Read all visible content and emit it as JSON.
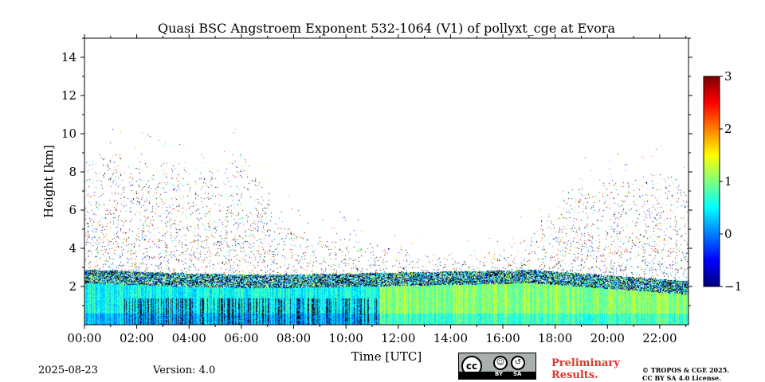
{
  "chart_data": {
    "type": "heatmap",
    "title": "Quasi BSC Angstroem Exponent 532-1064 (V1) of pollyxt_cge at Evora",
    "xlabel": "Time [UTC]",
    "ylabel": "Height [km]",
    "xlim_hours": [
      0,
      23.1
    ],
    "ylim_km": [
      0,
      15
    ],
    "x_ticks": [
      "00:00",
      "02:00",
      "04:00",
      "06:00",
      "08:00",
      "10:00",
      "12:00",
      "14:00",
      "16:00",
      "18:00",
      "20:00",
      "22:00"
    ],
    "x_tick_hours": [
      0,
      2,
      4,
      6,
      8,
      10,
      12,
      14,
      16,
      18,
      20,
      22
    ],
    "y_ticks": [
      2,
      4,
      6,
      8,
      10,
      12,
      14
    ],
    "colorbar": {
      "range": [
        -1,
        3
      ],
      "ticks": [
        "−1",
        "0",
        "1",
        "2",
        "3"
      ],
      "tick_values": [
        -1,
        0,
        1,
        2,
        3
      ],
      "colormap": "jet"
    },
    "features": {
      "boundary_layer_top_km": {
        "hours": [
          0,
          2,
          4,
          6,
          8,
          10,
          12,
          14,
          16,
          17,
          18,
          20,
          22,
          23.1
        ],
        "height": [
          2.7,
          2.6,
          2.5,
          2.45,
          2.45,
          2.5,
          2.55,
          2.6,
          2.65,
          2.7,
          2.6,
          2.4,
          2.2,
          2.1
        ]
      },
      "sparse_signal_top_km": {
        "hours": [
          0,
          1,
          3,
          5,
          6,
          8,
          10,
          12,
          14,
          16,
          18,
          19,
          20,
          22,
          23.1
        ],
        "height": [
          8.5,
          9.0,
          8.5,
          8.0,
          9.0,
          5.0,
          4.5,
          4.0,
          3.5,
          4.0,
          6.0,
          8.0,
          7.5,
          8.0,
          7.5
        ]
      },
      "dark_gap_hours": [
        1.5,
        11.3
      ]
    }
  },
  "footer": {
    "date": "2025-08-23",
    "version": "Version: 4.0",
    "preliminary_line1": "Preliminary",
    "preliminary_line2": "Results.",
    "license_line1": "© TROPOS & CGE 2025.",
    "license_line2": "CC BY SA 4.0 License.",
    "cc_label": "cc",
    "cc_by": "BY",
    "cc_sa": "SA"
  }
}
